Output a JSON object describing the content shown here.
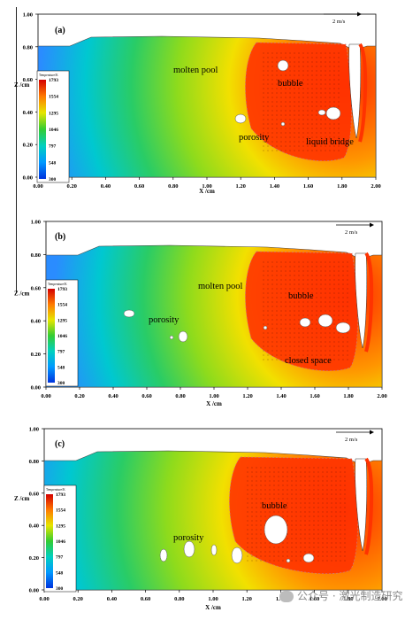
{
  "figure": {
    "units": {
      "temperature": "Temperature/K",
      "velocity": "2 m/s"
    },
    "colorbar": {
      "labels": [
        "1793",
        "1554",
        "1295",
        "1046",
        "797",
        "548",
        "300"
      ],
      "colors": [
        "#d40000",
        "#ff7a00",
        "#e6e600",
        "#33cc33",
        "#00d0c0",
        "#0099ff",
        "#0033dd"
      ]
    },
    "axis": {
      "xlabel": "X /cm",
      "zlabel": "Z /cm",
      "x_ticks": [
        "0.00",
        "0.20",
        "0.40",
        "0.60",
        "0.80",
        "1.00",
        "1.20",
        "1.40",
        "1.60",
        "1.80",
        "2.00"
      ],
      "z_ticks": [
        "1.00",
        "0.80",
        "0.60",
        "0.40",
        "0.20",
        "0.00"
      ]
    },
    "panels": [
      {
        "tag": "(a)",
        "labels": [
          "molten pool",
          "bubble",
          "porosity",
          "liquid bridge"
        ]
      },
      {
        "tag": "(b)",
        "labels": [
          "molten pool",
          "bubble",
          "porosity",
          "closed space"
        ]
      },
      {
        "tag": "(c)",
        "labels": [
          "bubble",
          "porosity"
        ]
      }
    ]
  },
  "watermark": {
    "text": "公众号 · 激光制造研究"
  }
}
